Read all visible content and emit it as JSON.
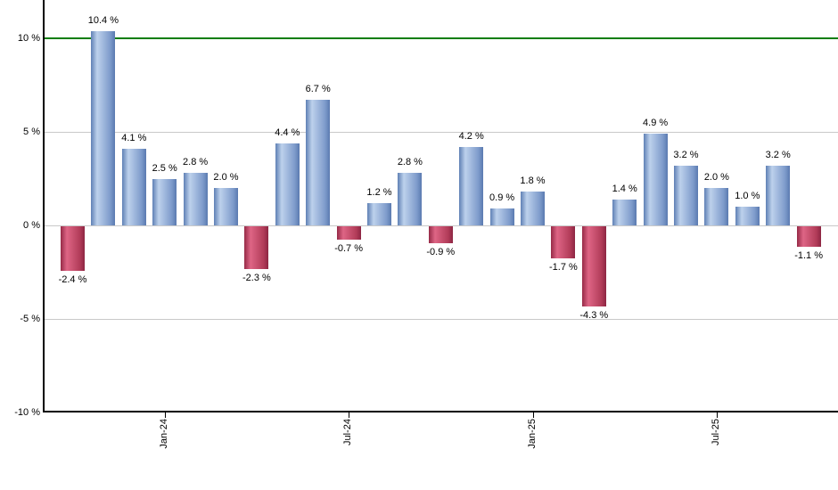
{
  "chart_data": {
    "type": "bar",
    "title": "",
    "xlabel": "",
    "ylabel": "",
    "values": [
      -2.4,
      10.4,
      4.1,
      2.5,
      2.8,
      2.0,
      -2.3,
      4.4,
      6.7,
      -0.7,
      1.2,
      2.8,
      -0.9,
      4.2,
      0.9,
      1.8,
      -1.7,
      -4.3,
      1.4,
      4.9,
      3.2,
      2.0,
      1.0,
      3.2,
      -1.1
    ],
    "value_labels": [
      "-2.4 %",
      "10.4 %",
      "4.1 %",
      "2.5 %",
      "2.8 %",
      "2.0 %",
      "-2.3 %",
      "4.4 %",
      "6.7 %",
      "-0.7 %",
      "1.2 %",
      "2.8 %",
      "-0.9 %",
      "4.2 %",
      "0.9 %",
      "1.8 %",
      "-1.7 %",
      "-4.3 %",
      "1.4 %",
      "4.9 %",
      "3.2 %",
      "2.0 %",
      "1.0 %",
      "3.2 %",
      "-1.1 %"
    ],
    "x_ticks": [
      {
        "label": "Jan-24",
        "bar_index": 3
      },
      {
        "label": "Jul-24",
        "bar_index": 9
      },
      {
        "label": "Jan-25",
        "bar_index": 15
      },
      {
        "label": "Jul-25",
        "bar_index": 21
      }
    ],
    "y_ticks": [
      {
        "label": "10 %",
        "value": 10
      },
      {
        "label": "5 %",
        "value": 5
      },
      {
        "label": "0 %",
        "value": 0
      },
      {
        "label": "-5 %",
        "value": -5
      },
      {
        "label": "-10 %",
        "value": -10
      }
    ],
    "ylim": [
      -10,
      12.1
    ],
    "grid": true,
    "legend": "none",
    "reference_line": {
      "value": 10,
      "color": "#0b7e0b"
    },
    "colors": {
      "positive_bar": [
        "#5f80b5",
        "#bdd1ec",
        "#7e9bcb",
        "#5a7ab0"
      ],
      "negative_bar": [
        "#962a47",
        "#de6585",
        "#b23c59",
        "#8d2643"
      ],
      "grid_line": "#c9c9c9",
      "axis_line": "#000000",
      "label_text": "#000000"
    }
  }
}
